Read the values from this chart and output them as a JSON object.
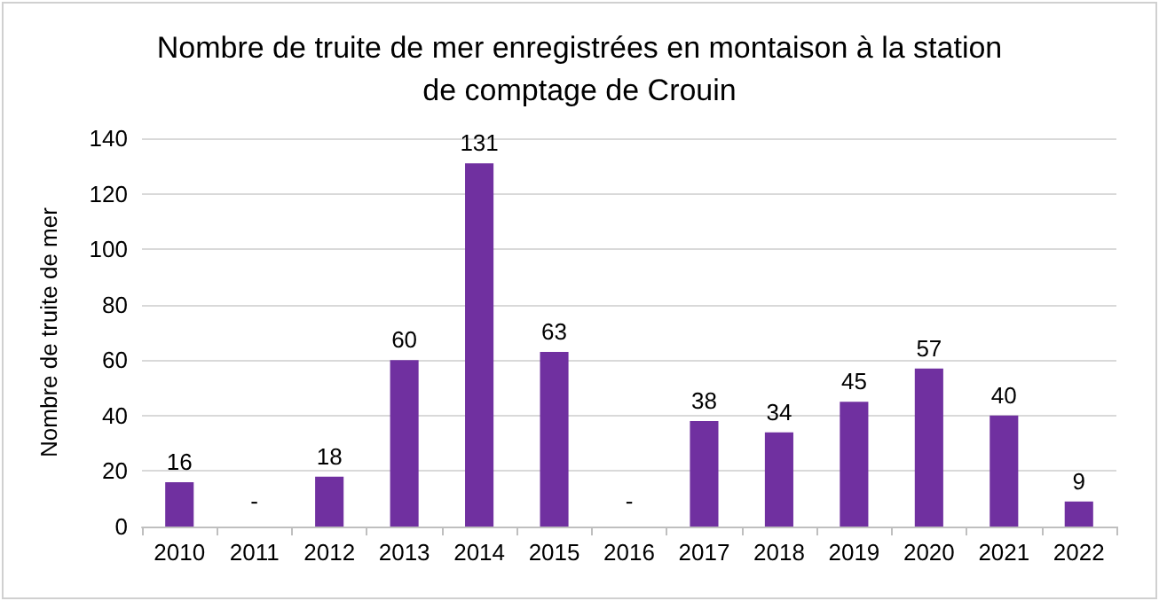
{
  "chart_data": {
    "type": "bar",
    "title": "Nombre de truite de mer enregistrées en montaison à la station\nde comptage de Crouin",
    "ylabel": "Nombre de truite de mer",
    "categories": [
      "2010",
      "2011",
      "2012",
      "2013",
      "2014",
      "2015",
      "2016",
      "2017",
      "2018",
      "2019",
      "2020",
      "2021",
      "2022"
    ],
    "values": [
      16,
      null,
      18,
      60,
      131,
      63,
      null,
      38,
      34,
      45,
      57,
      40,
      9
    ],
    "value_labels": [
      "16",
      "-",
      "18",
      "60",
      "131",
      "63",
      "-",
      "38",
      "34",
      "45",
      "57",
      "40",
      "9"
    ],
    "color": "#7030a0",
    "ylim": [
      0,
      140
    ],
    "yticks": [
      0,
      20,
      40,
      60,
      80,
      100,
      120,
      140
    ],
    "grid": "y"
  }
}
